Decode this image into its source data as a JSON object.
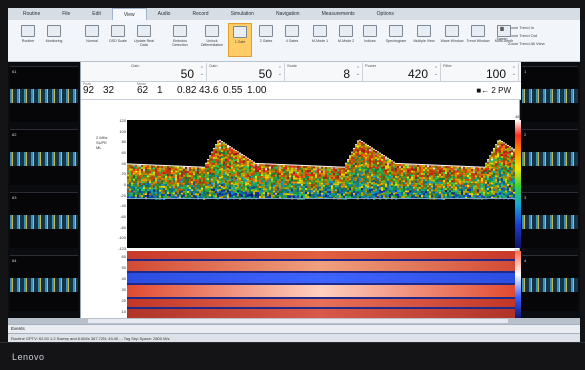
{
  "menu": {
    "items": [
      "Routine",
      "File",
      "Edit",
      "View",
      "Audio",
      "Record",
      "Simulation",
      "Navigation",
      "Measurements",
      "Options"
    ],
    "active": "View"
  },
  "ribbon": {
    "buttons": [
      {
        "label": "Routine",
        "icon": "routine-icon"
      },
      {
        "label": "Monitoring",
        "icon": "monitor-icon"
      },
      {
        "label": "Normal",
        "icon": "waveform-icon"
      },
      {
        "label": "DSD Scale",
        "icon": "scale-icon"
      },
      {
        "label": "Update Real Data",
        "icon": "lightning-icon"
      },
      {
        "label": "Embolus Detection",
        "icon": "grid-icon"
      },
      {
        "label": "Unlock Differentiation",
        "icon": "lock-icon"
      },
      {
        "label": "1 Gate",
        "icon": "layout-1-icon"
      },
      {
        "label": "2 Gates",
        "icon": "layout-2-icon"
      },
      {
        "label": "4 Gates",
        "icon": "layout-4-icon"
      },
      {
        "label": "M-Mode 1",
        "icon": "mmode-1-icon"
      },
      {
        "label": "M-Mode 2",
        "icon": "mmode-2-icon"
      },
      {
        "label": "Indices",
        "icon": "indices-icon"
      },
      {
        "label": "Spectrogram",
        "icon": "spectrogram-icon"
      },
      {
        "label": "Multiple View",
        "icon": "multiview-icon"
      },
      {
        "label": "Wave Window",
        "icon": "wave-icon"
      },
      {
        "label": "Trend Window",
        "icon": "trend-icon"
      },
      {
        "label": "Multi-Depth",
        "icon": "depth-icon"
      },
      {
        "label": "Sweep",
        "icon": "sweep-icon"
      }
    ],
    "zoom": [
      "Zoom Trend In",
      "Zoom Trend Out",
      "Zoom Trend All View"
    ]
  },
  "params": [
    {
      "label": "Gain",
      "value": "50"
    },
    {
      "label": "Gain",
      "value": "50"
    },
    {
      "label": "Scale",
      "value": "8"
    },
    {
      "label": "Power",
      "value": "420"
    },
    {
      "label": "Filter",
      "value": "100"
    }
  ],
  "measurements": {
    "values": [
      "92",
      "32",
      "62",
      "1",
      "0.82",
      "43.6",
      "0.55",
      "1.00"
    ],
    "labels": [
      "Peak",
      "Mean"
    ],
    "mode": "■← 2 PW"
  },
  "y_ticks": [
    "120",
    "100",
    "80",
    "60",
    "40",
    "20",
    "0",
    "-20",
    "-40",
    "-60",
    "-80",
    "-100",
    "-123"
  ],
  "mmode_ticks": [
    "60",
    "50",
    "40",
    "30",
    "20",
    "10"
  ],
  "colorbar": {
    "top": "48",
    "bottom": "-24"
  },
  "legend": {
    "probe": "2 MHz",
    "line1": "SUPE",
    "line2": "ML"
  },
  "left_strips": [
    "61",
    "62",
    "63",
    "64"
  ],
  "right_strips": [
    "1",
    "2",
    "3",
    "4"
  ],
  "event_bar": {
    "label": "Events"
  },
  "status": {
    "text": "Routine  GPTV: 62.50  1.2  Sweep and 6.6M/s  367.72N: 49.40  ...  Tag Sep Space: 2800 M/s"
  },
  "bezel": {
    "brand": "Lenovo"
  },
  "colors": {
    "accent": "#ffcc66",
    "ribbon": "#f2f5f9",
    "doppler_bg": "#000000"
  }
}
